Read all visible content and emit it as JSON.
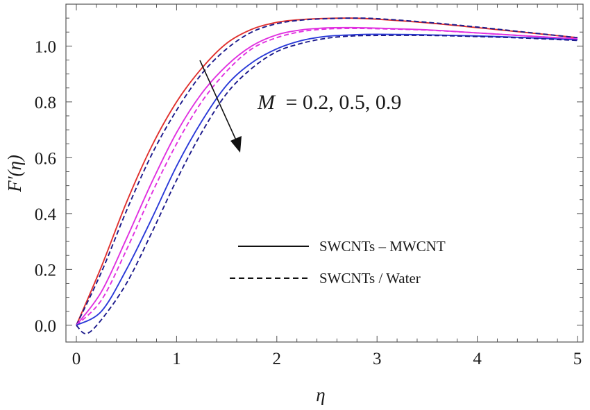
{
  "chart_data": {
    "type": "line",
    "xlabel": "η",
    "ylabel": "F′(η)",
    "xlim": [
      0,
      5
    ],
    "ylim": [
      -0.06,
      1.15
    ],
    "x_ticks": [
      "0",
      "1",
      "2",
      "3",
      "4",
      "5"
    ],
    "y_ticks": [
      "0.0",
      "0.2",
      "0.4",
      "0.6",
      "0.8",
      "1.0"
    ],
    "annotation": {
      "symbol": "M",
      "text": "= 0.2, 0.5, 0.9"
    },
    "legend": {
      "placement": "center-right",
      "entries": [
        {
          "label": "SWCNTs – MWCNT",
          "style": "solid"
        },
        {
          "label": "SWCNTs / Water",
          "style": "dashed"
        }
      ]
    },
    "colors": {
      "red": "#e0302e",
      "magenta": "#e030e0",
      "blue": "#2a3ad8",
      "navy": "#1c1a8c"
    },
    "series": [
      {
        "color": "#e0302e",
        "style": "solid",
        "x": [
          0,
          0.25,
          0.5,
          0.75,
          1.0,
          1.25,
          1.5,
          1.75,
          2.0,
          2.25,
          2.5,
          2.75,
          3.0,
          3.5,
          4.0,
          4.5,
          5.0
        ],
        "y": [
          0.0,
          0.21,
          0.44,
          0.64,
          0.8,
          0.92,
          1.01,
          1.06,
          1.085,
          1.095,
          1.099,
          1.1,
          1.096,
          1.083,
          1.066,
          1.048,
          1.03
        ]
      },
      {
        "color": "#1c1a8c",
        "style": "dashed",
        "x": [
          0,
          0.25,
          0.5,
          0.75,
          1.0,
          1.25,
          1.5,
          1.75,
          2.0,
          2.25,
          2.5,
          2.75,
          3.0,
          3.5,
          4.0,
          4.5,
          5.0
        ],
        "y": [
          0.0,
          0.19,
          0.41,
          0.61,
          0.77,
          0.9,
          0.99,
          1.05,
          1.08,
          1.093,
          1.098,
          1.1,
          1.098,
          1.085,
          1.068,
          1.049,
          1.03
        ]
      },
      {
        "color": "#e030e0",
        "style": "solid",
        "x": [
          0,
          0.25,
          0.5,
          0.75,
          1.0,
          1.25,
          1.5,
          1.75,
          2.0,
          2.25,
          2.5,
          2.75,
          3.0,
          3.5,
          4.0,
          4.5,
          5.0
        ],
        "y": [
          0.0,
          0.12,
          0.31,
          0.51,
          0.69,
          0.83,
          0.93,
          1.0,
          1.04,
          1.058,
          1.065,
          1.066,
          1.064,
          1.058,
          1.047,
          1.036,
          1.026
        ]
      },
      {
        "color": "#e030e0",
        "style": "dashed",
        "x": [
          0,
          0.25,
          0.5,
          0.75,
          1.0,
          1.25,
          1.5,
          1.75,
          2.0,
          2.25,
          2.5,
          2.75,
          3.0,
          3.5,
          4.0,
          4.5,
          5.0
        ],
        "y": [
          0.0,
          0.09,
          0.27,
          0.47,
          0.65,
          0.8,
          0.91,
          0.99,
          1.03,
          1.052,
          1.061,
          1.063,
          1.062,
          1.057,
          1.047,
          1.036,
          1.026
        ]
      },
      {
        "color": "#2a3ad8",
        "style": "solid",
        "x": [
          0,
          0.25,
          0.5,
          0.75,
          1.0,
          1.25,
          1.5,
          1.75,
          2.0,
          2.25,
          2.5,
          2.75,
          3.0,
          3.5,
          4.0,
          4.5,
          5.0
        ],
        "y": [
          0.0,
          0.05,
          0.2,
          0.38,
          0.57,
          0.73,
          0.86,
          0.94,
          0.99,
          1.02,
          1.035,
          1.04,
          1.042,
          1.04,
          1.036,
          1.03,
          1.022
        ]
      },
      {
        "color": "#1c1a8c",
        "style": "dashed",
        "x": [
          0,
          0.1,
          0.25,
          0.5,
          0.75,
          1.0,
          1.25,
          1.5,
          1.75,
          2.0,
          2.25,
          2.5,
          2.75,
          3.0,
          3.5,
          4.0,
          4.5,
          5.0
        ],
        "y": [
          0.0,
          -0.03,
          0.02,
          0.15,
          0.33,
          0.52,
          0.69,
          0.83,
          0.92,
          0.98,
          1.01,
          1.028,
          1.036,
          1.038,
          1.038,
          1.034,
          1.028,
          1.02
        ]
      }
    ]
  }
}
